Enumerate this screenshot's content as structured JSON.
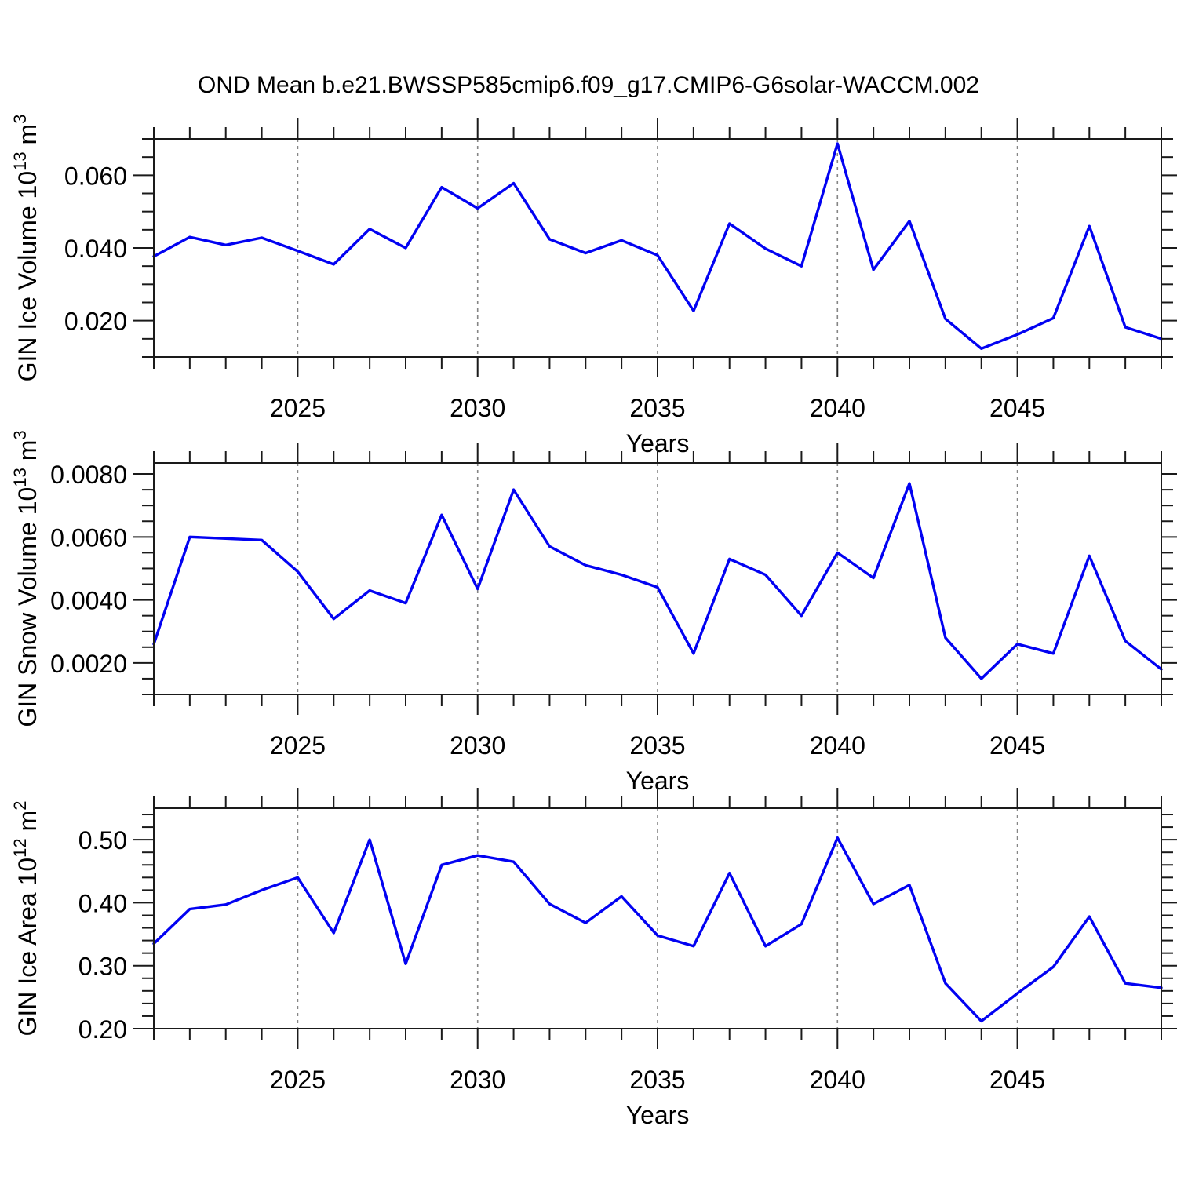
{
  "title": "OND Mean b.e21.BWSSP585cmip6.f09_g17.CMIP6-G6solar-WACCM.002",
  "colors": {
    "line": "#0202f2",
    "axis": "#1a1a1a",
    "grid": "#858585",
    "background": "#ffffff",
    "text": "#000000"
  },
  "chart_data": [
    {
      "type": "line",
      "ylabel": "GIN Ice Volume 10^13 m^3",
      "ylabel_parts": [
        {
          "t": "GIN Ice Volume 10"
        },
        {
          "sup": "13"
        },
        {
          "t": " m"
        },
        {
          "sup": "3"
        }
      ],
      "xlabel": "Years",
      "xlim": [
        2021,
        2049
      ],
      "ylim": [
        0.01,
        0.07
      ],
      "x_tick_values": [
        2025,
        2030,
        2035,
        2040,
        2045
      ],
      "x_tick_labels": [
        "2025",
        "2030",
        "2035",
        "2040",
        "2045"
      ],
      "x_minor_step": 1,
      "y_tick_values": [
        0.02,
        0.04,
        0.06
      ],
      "y_tick_labels": [
        "0.020",
        "0.040",
        "0.060"
      ],
      "y_minor_step": 0.005,
      "grid": "vertical-dashed",
      "legend": "none",
      "x": [
        2021,
        2022,
        2023,
        2024,
        2025,
        2026,
        2027,
        2028,
        2029,
        2030,
        2031,
        2032,
        2033,
        2034,
        2035,
        2036,
        2037,
        2038,
        2039,
        2040,
        2041,
        2042,
        2043,
        2044,
        2045,
        2046,
        2047,
        2048,
        2049
      ],
      "values": [
        0.0377,
        0.043,
        0.0408,
        0.0428,
        0.0392,
        0.0355,
        0.0452,
        0.04,
        0.0567,
        0.0509,
        0.0578,
        0.0424,
        0.0386,
        0.0421,
        0.038,
        0.0227,
        0.0467,
        0.0398,
        0.035,
        0.0687,
        0.034,
        0.0474,
        0.0205,
        0.0123,
        0.0162,
        0.0207,
        0.046,
        0.0182,
        0.015
      ]
    },
    {
      "type": "line",
      "ylabel": "GIN Snow Volume 10^13 m^3",
      "ylabel_parts": [
        {
          "t": "GIN Snow Volume 10"
        },
        {
          "sup": "13"
        },
        {
          "t": " m"
        },
        {
          "sup": "3"
        }
      ],
      "xlabel": "Years",
      "xlim": [
        2021,
        2049
      ],
      "ylim": [
        0.001,
        0.00835
      ],
      "x_tick_values": [
        2025,
        2030,
        2035,
        2040,
        2045
      ],
      "x_tick_labels": [
        "2025",
        "2030",
        "2035",
        "2040",
        "2045"
      ],
      "x_minor_step": 1,
      "y_tick_values": [
        0.002,
        0.004,
        0.006,
        0.008
      ],
      "y_tick_labels": [
        "0.0020",
        "0.0040",
        "0.0060",
        "0.0080"
      ],
      "y_minor_step": 0.0005,
      "grid": "vertical-dashed",
      "legend": "none",
      "x": [
        2021,
        2022,
        2023,
        2024,
        2025,
        2026,
        2027,
        2028,
        2029,
        2030,
        2031,
        2032,
        2033,
        2034,
        2035,
        2036,
        2037,
        2038,
        2039,
        2040,
        2041,
        2042,
        2043,
        2044,
        2045,
        2046,
        2047,
        2048,
        2049
      ],
      "values": [
        0.0026,
        0.006,
        0.00595,
        0.0059,
        0.0049,
        0.0034,
        0.0043,
        0.0039,
        0.0067,
        0.00435,
        0.0075,
        0.0057,
        0.0051,
        0.0048,
        0.0044,
        0.0023,
        0.0053,
        0.0048,
        0.0035,
        0.0055,
        0.0047,
        0.0077,
        0.0028,
        0.0015,
        0.0026,
        0.0023,
        0.0054,
        0.0027,
        0.0018
      ]
    },
    {
      "type": "line",
      "ylabel": "GIN Ice Area 10^12 m^2",
      "ylabel_parts": [
        {
          "t": "GIN Ice Area 10"
        },
        {
          "sup": "12"
        },
        {
          "t": " m"
        },
        {
          "sup": "2"
        }
      ],
      "xlabel": "Years",
      "xlim": [
        2021,
        2049
      ],
      "ylim": [
        0.2,
        0.55
      ],
      "x_tick_values": [
        2025,
        2030,
        2035,
        2040,
        2045
      ],
      "x_tick_labels": [
        "2025",
        "2030",
        "2035",
        "2040",
        "2045"
      ],
      "x_minor_step": 1,
      "y_tick_values": [
        0.2,
        0.3,
        0.4,
        0.5
      ],
      "y_tick_labels": [
        "0.20",
        "0.30",
        "0.40",
        "0.50"
      ],
      "y_minor_step": 0.02,
      "grid": "vertical-dashed",
      "legend": "none",
      "x": [
        2021,
        2022,
        2023,
        2024,
        2025,
        2026,
        2027,
        2028,
        2029,
        2030,
        2031,
        2032,
        2033,
        2034,
        2035,
        2036,
        2037,
        2038,
        2039,
        2040,
        2041,
        2042,
        2043,
        2044,
        2045,
        2046,
        2047,
        2048,
        2049
      ],
      "values": [
        0.335,
        0.39,
        0.397,
        0.42,
        0.44,
        0.352,
        0.5,
        0.303,
        0.46,
        0.475,
        0.465,
        0.398,
        0.368,
        0.41,
        0.348,
        0.331,
        0.447,
        0.331,
        0.366,
        0.503,
        0.398,
        0.428,
        0.272,
        0.212,
        0.256,
        0.298,
        0.378,
        0.272,
        0.265
      ]
    }
  ]
}
